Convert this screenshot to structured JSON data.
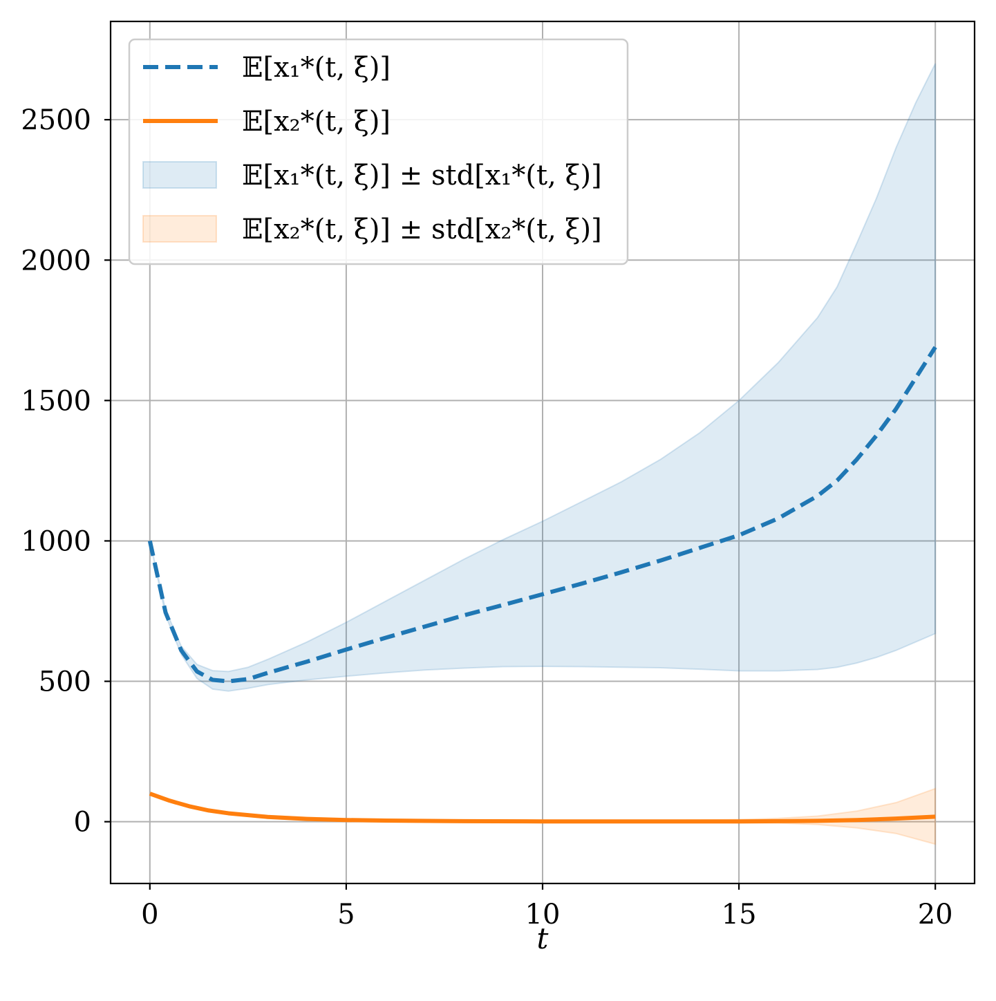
{
  "chart_data": {
    "type": "line",
    "xlabel": "t",
    "ylabel": "",
    "xlim": [
      -1,
      21
    ],
    "ylim": [
      -220,
      2850
    ],
    "xticks": [
      0,
      5,
      10,
      15,
      20
    ],
    "yticks": [
      0,
      500,
      1000,
      1500,
      2000,
      2500
    ],
    "xtick_labels": [
      "0",
      "5",
      "10",
      "15",
      "20"
    ],
    "ytick_labels": [
      "0",
      "500",
      "1000",
      "1500",
      "2000",
      "2500"
    ],
    "grid": true,
    "legend_position": "top-left",
    "series": [
      {
        "name": "𝔼[x₁*(t, ξ)]",
        "style": "dashed",
        "color": "#1f77b4",
        "x": [
          0,
          0.4,
          0.8,
          1.2,
          1.6,
          2.0,
          2.5,
          3,
          4,
          5,
          6,
          7,
          8,
          9,
          10,
          11,
          12,
          13,
          14,
          15,
          16,
          17,
          17.5,
          18,
          18.5,
          19,
          19.5,
          20
        ],
        "y": [
          1000,
          745,
          610,
          535,
          505,
          500,
          508,
          530,
          570,
          613,
          655,
          695,
          735,
          772,
          810,
          848,
          888,
          930,
          975,
          1020,
          1080,
          1160,
          1215,
          1290,
          1375,
          1470,
          1580,
          1690
        ]
      },
      {
        "name": "𝔼[x₂*(t, ξ)]",
        "style": "solid",
        "color": "#ff7f0e",
        "x": [
          0,
          0.5,
          1,
          1.5,
          2,
          3,
          4,
          5,
          6,
          8,
          10,
          12,
          14,
          15,
          16,
          17,
          18,
          19,
          20
        ],
        "y": [
          100,
          75,
          55,
          40,
          30,
          17,
          10,
          6,
          4,
          2,
          1,
          1,
          1,
          1,
          2,
          3,
          6,
          11,
          18
        ]
      }
    ],
    "bands": [
      {
        "name": "𝔼[x₁*(t, ξ)] ± std[x₁*(t, ξ)]",
        "color": "#1f77b4",
        "x": [
          0,
          0.4,
          0.8,
          1.2,
          1.6,
          2.0,
          2.5,
          3,
          4,
          5,
          6,
          7,
          8,
          9,
          10,
          11,
          12,
          13,
          14,
          15,
          16,
          17,
          17.5,
          18,
          18.5,
          19,
          19.5,
          20
        ],
        "lower": [
          1000,
          735,
          595,
          510,
          472,
          465,
          475,
          488,
          505,
          518,
          530,
          540,
          547,
          552,
          553,
          552,
          550,
          548,
          543,
          537,
          537,
          542,
          550,
          565,
          585,
          610,
          640,
          670
        ],
        "upper": [
          1000,
          755,
          625,
          560,
          538,
          535,
          550,
          578,
          640,
          710,
          785,
          860,
          935,
          1005,
          1070,
          1140,
          1210,
          1290,
          1385,
          1500,
          1635,
          1795,
          1905,
          2060,
          2220,
          2400,
          2560,
          2700
        ]
      },
      {
        "name": "𝔼[x₂*(t, ξ)] ± std[x₂*(t, ξ)]",
        "color": "#ff7f0e",
        "x": [
          0,
          0.5,
          1,
          1.5,
          2,
          3,
          4,
          5,
          6,
          8,
          10,
          12,
          14,
          15,
          16,
          17,
          18,
          19,
          20
        ],
        "lower": [
          100,
          74,
          53,
          37,
          26,
          12,
          5,
          1,
          -1,
          -2,
          -2,
          -2,
          -3,
          -4,
          -5,
          -10,
          -22,
          -42,
          -80
        ],
        "upper": [
          100,
          76,
          57,
          43,
          34,
          22,
          15,
          11,
          9,
          6,
          4,
          4,
          6,
          8,
          12,
          20,
          38,
          68,
          118
        ]
      }
    ]
  }
}
